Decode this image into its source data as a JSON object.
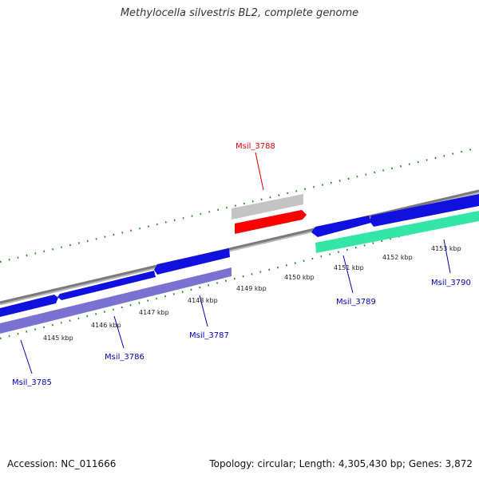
{
  "title": "Methylocella silvestris BL2, complete genome",
  "footer": {
    "accession": "Accession: NC_011666",
    "topology": "Topology: circular; Length: 4,305,430 bp; Genes: 3,872"
  },
  "colors": {
    "forward_cds": "#1010e0",
    "reverse_cds": "#7a72d0",
    "highlight_gene": "#ff0000",
    "highlight_gray": "#c4c4c4",
    "rna_feature": "#33e6a8",
    "backbone": "#7a7a7a",
    "tick": "#1f8a1f",
    "label_blue": "#0000bb",
    "label_red": "#dd0000"
  },
  "tick_labels": [
    "4145 kbp",
    "4146 kbp",
    "4147 kbp",
    "4148 kbp",
    "4149 kbp",
    "4150 kbp",
    "4151 kbp",
    "4152 kbp",
    "4153 kbp"
  ],
  "gene_labels": [
    {
      "name": "Msil_3785",
      "color": "blue"
    },
    {
      "name": "Msil_3786",
      "color": "blue"
    },
    {
      "name": "Msil_3787",
      "color": "blue"
    },
    {
      "name": "Msil_3788",
      "color": "red"
    },
    {
      "name": "Msil_3789",
      "color": "blue"
    },
    {
      "name": "Msil_3790",
      "color": "blue"
    }
  ]
}
